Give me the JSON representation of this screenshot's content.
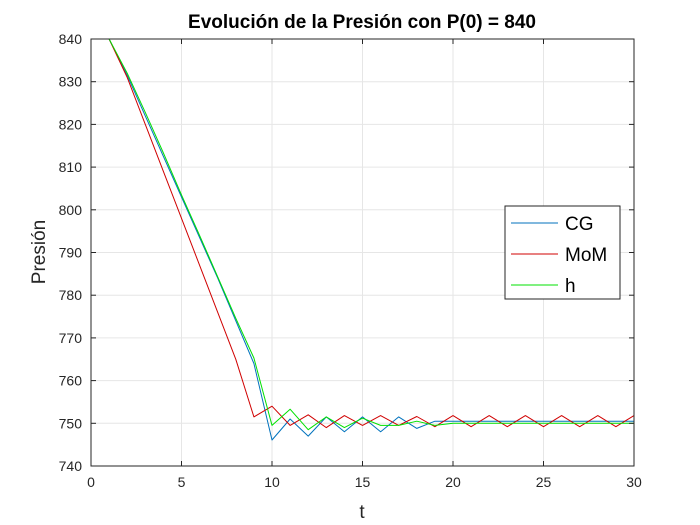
{
  "chart_data": {
    "type": "line",
    "title": "Evolución de la Presión con P(0) = 840",
    "xlabel": "t",
    "ylabel": "Presión",
    "xlim": [
      0,
      30
    ],
    "ylim": [
      740,
      840
    ],
    "xticks": [
      0,
      5,
      10,
      15,
      20,
      25,
      30
    ],
    "yticks": [
      740,
      750,
      760,
      770,
      780,
      790,
      800,
      810,
      820,
      830,
      840
    ],
    "grid": true,
    "legend_position": "center-right",
    "x": [
      1,
      2,
      3,
      4,
      5,
      6,
      7,
      8,
      9,
      10,
      11,
      12,
      13,
      14,
      15,
      16,
      17,
      18,
      19,
      20,
      21,
      22,
      23,
      24,
      25,
      26,
      27,
      28,
      29,
      30
    ],
    "series": [
      {
        "name": "CG",
        "color": "#0072BD",
        "values": [
          840,
          831.5,
          822,
          812.5,
          803,
          793.5,
          784,
          774,
          764,
          746.1,
          751,
          747,
          751.5,
          748,
          751.5,
          748,
          751.5,
          748.8,
          750.5,
          750.5,
          750.5,
          750.5,
          750.5,
          750.5,
          750.5,
          750.5,
          750.5,
          750.5,
          750.5,
          750.5
        ]
      },
      {
        "name": "MoM",
        "color": "#D00000",
        "values": [
          840,
          831,
          820,
          809,
          798,
          787,
          776,
          765,
          751.5,
          754,
          749.5,
          752,
          749,
          751.8,
          749.5,
          751.8,
          749.5,
          751.6,
          749.2,
          751.8,
          749.2,
          751.8,
          749.2,
          751.8,
          749.2,
          751.8,
          749.2,
          751.8,
          749.2,
          751.8
        ]
      },
      {
        "name": "h",
        "color": "#00E000",
        "values": [
          840,
          832,
          822.8,
          813.3,
          803.5,
          794,
          784.3,
          774.6,
          765.3,
          749.5,
          753.3,
          748.5,
          751.5,
          749,
          751.2,
          749.5,
          749.5,
          750.5,
          749.5,
          750,
          750,
          750,
          750,
          750,
          750,
          750,
          750,
          750,
          750,
          750
        ]
      }
    ]
  }
}
